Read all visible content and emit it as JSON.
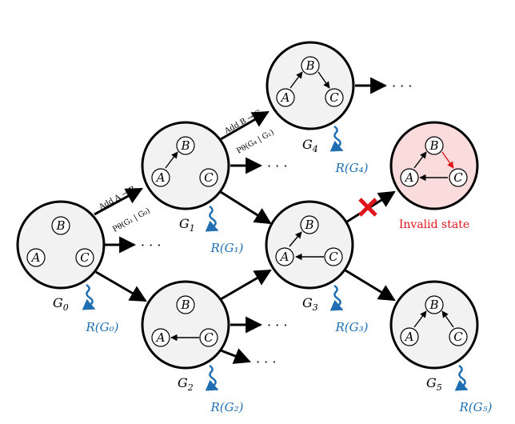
{
  "graph_labels": {
    "G0": "G",
    "G0_sub": "0",
    "G1": "G",
    "G1_sub": "1",
    "G2": "G",
    "G2_sub": "2",
    "G3": "G",
    "G3_sub": "3",
    "G4": "G",
    "G4_sub": "4",
    "G5": "G",
    "G5_sub": "5"
  },
  "rewards": {
    "G0": "R(G₀)",
    "G1": "R(G₁)",
    "G2": "R(G₂)",
    "G3": "R(G₃)",
    "G4": "R(G₄)",
    "G5": "R(G₅)"
  },
  "nodes": {
    "A": "A",
    "B": "B",
    "C": "C"
  },
  "edges": {
    "e01_action": "Add A → B",
    "e01_prob": "Pθ(G₁ | G₀)",
    "e14_action": "Add B → C",
    "e14_prob": "Pθ(G₄ | G₁)"
  },
  "ellipsis": "· · ·",
  "invalid_label": "Invalid state",
  "colors": {
    "state_fill": "#f2f2f2",
    "invalid_fill": "#fbdcdc",
    "reward_blue": "#1f6fb2",
    "invalid_red": "#e0161c"
  }
}
